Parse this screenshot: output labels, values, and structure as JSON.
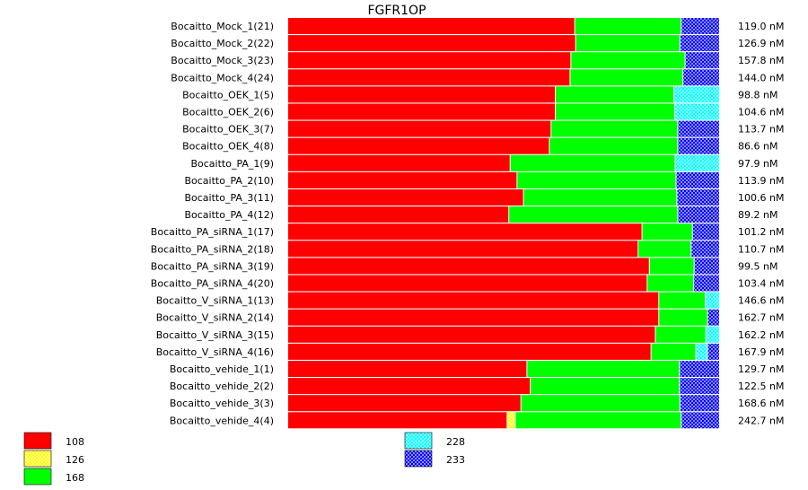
{
  "chart_data": {
    "type": "bar",
    "orientation": "horizontal",
    "stacked": "percent",
    "title": "FGFR1OP",
    "series": [
      {
        "name": "108",
        "color": "#ff0000",
        "pattern": "solid"
      },
      {
        "name": "126",
        "color": "#ffff00",
        "pattern": "checker"
      },
      {
        "name": "168",
        "color": "#00ff00",
        "pattern": "solid"
      },
      {
        "name": "228",
        "color": "#00ffff",
        "pattern": "checker"
      },
      {
        "name": "233",
        "color": "#0000ff",
        "pattern": "checker"
      }
    ],
    "rows": [
      {
        "label": "Bocaitto_Mock_1(21)",
        "total": "119.0 nM",
        "values": [
          66.5,
          0,
          24.7,
          0,
          8.8
        ]
      },
      {
        "label": "Bocaitto_Mock_2(22)",
        "total": "126.9 nM",
        "values": [
          66.7,
          0,
          24.2,
          0,
          9.1
        ]
      },
      {
        "label": "Bocaitto_Mock_3(23)",
        "total": "157.8 nM",
        "values": [
          65.6,
          0,
          26.5,
          0,
          7.9
        ]
      },
      {
        "label": "Bocaitto_Mock_4(24)",
        "total": "144.0 nM",
        "values": [
          65.4,
          0,
          26.2,
          0,
          8.4
        ]
      },
      {
        "label": "Bocaitto_OEK_1(5)",
        "total": "98.8 nM",
        "values": [
          62.0,
          0,
          27.5,
          10.5,
          0
        ]
      },
      {
        "label": "Bocaitto_OEK_2(6)",
        "total": "104.6 nM",
        "values": [
          62.0,
          0,
          27.7,
          10.3,
          0
        ]
      },
      {
        "label": "Bocaitto_OEK_3(7)",
        "total": "113.7 nM",
        "values": [
          61.0,
          0,
          29.4,
          0,
          9.6
        ]
      },
      {
        "label": "Bocaitto_OEK_4(8)",
        "total": "86.6 nM",
        "values": [
          60.6,
          0,
          29.8,
          0,
          9.6
        ]
      },
      {
        "label": "Bocaitto_PA_1(9)",
        "total": "97.9 nM",
        "values": [
          51.5,
          0,
          38.3,
          10.2,
          0
        ]
      },
      {
        "label": "Bocaitto_PA_2(10)",
        "total": "113.9 nM",
        "values": [
          53.1,
          0,
          36.9,
          0,
          10.0
        ]
      },
      {
        "label": "Bocaitto_PA_3(11)",
        "total": "100.6 nM",
        "values": [
          54.6,
          0,
          35.6,
          0,
          9.8
        ]
      },
      {
        "label": "Bocaitto_PA_4(12)",
        "total": "89.2 nM",
        "values": [
          51.2,
          0,
          39.2,
          0,
          9.6
        ]
      },
      {
        "label": "Bocaitto_PA_siRNA_1(17)",
        "total": "101.2 nM",
        "values": [
          82.1,
          0,
          11.7,
          0,
          6.2
        ]
      },
      {
        "label": "Bocaitto_PA_siRNA_2(18)",
        "total": "110.7 nM",
        "values": [
          81.2,
          0,
          12.3,
          0,
          6.5
        ]
      },
      {
        "label": "Bocaitto_PA_siRNA_3(19)",
        "total": "99.5 nM",
        "values": [
          83.8,
          0,
          10.4,
          0,
          5.8
        ]
      },
      {
        "label": "Bocaitto_PA_siRNA_4(20)",
        "total": "103.4 nM",
        "values": [
          83.3,
          0,
          10.8,
          0,
          5.9
        ]
      },
      {
        "label": "Bocaitto_V_siRNA_1(13)",
        "total": "146.6 nM",
        "values": [
          86.0,
          0,
          10.8,
          3.2,
          0
        ]
      },
      {
        "label": "Bocaitto_V_siRNA_2(14)",
        "total": "162.7 nM",
        "values": [
          86.0,
          0,
          11.3,
          0,
          2.7
        ]
      },
      {
        "label": "Bocaitto_V_siRNA_3(15)",
        "total": "162.2 nM",
        "values": [
          85.2,
          0,
          11.7,
          3.1,
          0
        ]
      },
      {
        "label": "Bocaitto_V_siRNA_4(16)",
        "total": "167.9 nM",
        "values": [
          84.2,
          0,
          10.4,
          2.7,
          2.7
        ]
      },
      {
        "label": "Bocaitto_vehide_1(1)",
        "total": "129.7 nM",
        "values": [
          55.4,
          0,
          35.4,
          0,
          9.2
        ]
      },
      {
        "label": "Bocaitto_vehide_2(2)",
        "total": "122.5 nM",
        "values": [
          56.2,
          0,
          34.6,
          0,
          9.2
        ]
      },
      {
        "label": "Bocaitto_vehide_3(3)",
        "total": "168.6 nM",
        "values": [
          54.0,
          0,
          36.9,
          0,
          9.1
        ]
      },
      {
        "label": "Bocaitto_vehide_4(4)",
        "total": "242.7 nM",
        "values": [
          50.8,
          1.9,
          38.5,
          0,
          8.8
        ]
      }
    ]
  }
}
